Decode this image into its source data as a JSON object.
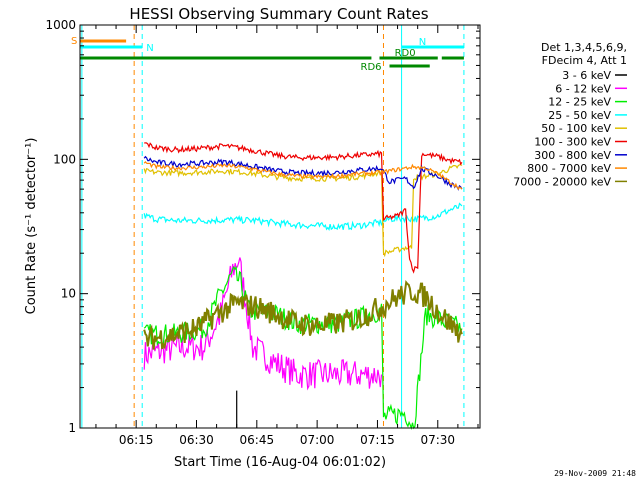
{
  "chart_data": {
    "type": "line",
    "title": "HESSI Observing Summary Count Rates",
    "xlabel": "Start Time (16-Aug-04 06:01:02)",
    "ylabel": "Count Rate (s⁻¹ detector⁻¹)",
    "yscale": "log",
    "ylim": [
      1,
      1000
    ],
    "xlim": [
      "06:01:02",
      "07:40:30"
    ],
    "x_ticks": [
      "06:15",
      "06:30",
      "06:45",
      "07:00",
      "07:15",
      "07:30"
    ],
    "y_ticks": [
      "1",
      "10",
      "100",
      "1000"
    ],
    "legend_header": [
      "Det 1,3,4,5,6,9,",
      "FDecim 4, Att 1"
    ],
    "legend_position": "right",
    "footer_date": "29-Nov-2009 21:48",
    "series": [
      {
        "name": "3 - 6 keV",
        "color": "#000000",
        "points": [
          [
            "06:40:00",
            1.9
          ],
          [
            "06:40:00",
            1.0
          ]
        ]
      },
      {
        "name": "6 - 12 keV",
        "color": "#ff00ff",
        "points": [
          [
            "06:17:00",
            3.5
          ],
          [
            "06:22:00",
            3.8
          ],
          [
            "06:27:00",
            4.0
          ],
          [
            "06:32:00",
            4.0
          ],
          [
            "06:36:00",
            7.0
          ],
          [
            "06:39:00",
            15.0
          ],
          [
            "06:40:30",
            18.0
          ],
          [
            "06:42:00",
            10.0
          ],
          [
            "06:44:00",
            4.0
          ],
          [
            "06:50:00",
            3.0
          ],
          [
            "06:55:00",
            2.5
          ],
          [
            "07:00:00",
            2.5
          ],
          [
            "07:10:00",
            2.5
          ],
          [
            "07:16:00",
            2.5
          ]
        ]
      },
      {
        "name": "12 - 25 keV",
        "color": "#00ee00",
        "points": [
          [
            "06:17:00",
            5.0
          ],
          [
            "06:25:00",
            5.0
          ],
          [
            "06:32:00",
            5.5
          ],
          [
            "06:36:00",
            10.0
          ],
          [
            "06:39:00",
            14.0
          ],
          [
            "06:41:00",
            12.0
          ],
          [
            "06:43:00",
            7.5
          ],
          [
            "06:50:00",
            7.0
          ],
          [
            "06:55:00",
            6.0
          ],
          [
            "07:00:00",
            6.0
          ],
          [
            "07:05:00",
            6.0
          ],
          [
            "07:10:00",
            6.5
          ],
          [
            "07:16:00",
            7.5
          ],
          [
            "07:16:30",
            1.2
          ],
          [
            "07:22:00",
            1.3
          ],
          [
            "07:24:00",
            1.0
          ],
          [
            "07:27:00",
            7.0
          ],
          [
            "07:30:00",
            6.5
          ],
          [
            "07:36:00",
            5.5
          ]
        ]
      },
      {
        "name": "25 - 50 keV",
        "color": "#00ffff",
        "points": [
          [
            "06:17:00",
            38.0
          ],
          [
            "06:20:00",
            36.0
          ],
          [
            "06:25:00",
            35.0
          ],
          [
            "06:30:00",
            35.0
          ],
          [
            "06:40:00",
            35.5
          ],
          [
            "06:45:00",
            35.0
          ],
          [
            "06:50:00",
            33.5
          ],
          [
            "06:55:00",
            32.5
          ],
          [
            "07:00:00",
            32.0
          ],
          [
            "07:05:00",
            31.5
          ],
          [
            "07:10:00",
            32.0
          ],
          [
            "07:16:00",
            34.0
          ],
          [
            "07:18:00",
            36.0
          ],
          [
            "07:22:00",
            36.5
          ],
          [
            "07:25:00",
            36.0
          ],
          [
            "07:30:00",
            38.0
          ],
          [
            "07:33:00",
            42.0
          ],
          [
            "07:36:00",
            45.0
          ]
        ]
      },
      {
        "name": "50 - 100 keV",
        "color": "#e0c000",
        "points": [
          [
            "06:17:00",
            82.0
          ],
          [
            "06:20:00",
            80.0
          ],
          [
            "06:25:00",
            79.0
          ],
          [
            "06:30:00",
            80.0
          ],
          [
            "06:37:00",
            82.0
          ],
          [
            "06:42:00",
            80.0
          ],
          [
            "06:50:00",
            74.0
          ],
          [
            "06:55:00",
            72.0
          ],
          [
            "07:00:00",
            72.0
          ],
          [
            "07:05:00",
            72.0
          ],
          [
            "07:10:00",
            74.0
          ],
          [
            "07:16:00",
            80.0
          ],
          [
            "07:16:30",
            20.0
          ],
          [
            "07:22:00",
            22.0
          ],
          [
            "07:23:30",
            22.0
          ],
          [
            "07:24:00",
            73.0
          ],
          [
            "07:27:00",
            75.0
          ],
          [
            "07:30:00",
            78.0
          ],
          [
            "07:33:00",
            85.0
          ],
          [
            "07:36:00",
            90.0
          ]
        ]
      },
      {
        "name": "100 - 300 keV",
        "color": "#ee0000",
        "points": [
          [
            "06:17:00",
            132.0
          ],
          [
            "06:20:00",
            122.0
          ],
          [
            "06:25:00",
            118.0
          ],
          [
            "06:30:00",
            120.0
          ],
          [
            "06:37:00",
            126.0
          ],
          [
            "06:42:00",
            120.0
          ],
          [
            "06:50:00",
            107.0
          ],
          [
            "06:55:00",
            103.0
          ],
          [
            "07:00:00",
            103.0
          ],
          [
            "07:05:00",
            104.0
          ],
          [
            "07:10:00",
            107.0
          ],
          [
            "07:16:00",
            110.0
          ],
          [
            "07:16:30",
            36.0
          ],
          [
            "07:20:00",
            38.0
          ],
          [
            "07:22:00",
            42.0
          ],
          [
            "07:23:00",
            18.0
          ],
          [
            "07:24:00",
            15.0
          ],
          [
            "07:25:00",
            16.0
          ],
          [
            "07:26:00",
            110.0
          ],
          [
            "07:30:00",
            105.0
          ],
          [
            "07:33:00",
            98.0
          ],
          [
            "07:36:00",
            95.0
          ]
        ]
      },
      {
        "name": "300 - 800 keV",
        "color": "#0000cc",
        "points": [
          [
            "06:17:00",
            102.0
          ],
          [
            "06:20:00",
            95.0
          ],
          [
            "06:25:00",
            92.0
          ],
          [
            "06:30:00",
            93.0
          ],
          [
            "06:37:00",
            96.0
          ],
          [
            "06:42:00",
            91.0
          ],
          [
            "06:50:00",
            82.0
          ],
          [
            "06:55:00",
            79.0
          ],
          [
            "07:00:00",
            79.0
          ],
          [
            "07:05:00",
            80.0
          ],
          [
            "07:10:00",
            83.0
          ],
          [
            "07:16:00",
            86.0
          ],
          [
            "07:18:00",
            68.0
          ],
          [
            "07:22:00",
            72.0
          ],
          [
            "07:24:00",
            62.0
          ],
          [
            "07:26:00",
            85.0
          ],
          [
            "07:30:00",
            75.0
          ],
          [
            "07:33:00",
            66.0
          ],
          [
            "07:36:00",
            60.0
          ]
        ]
      },
      {
        "name": "800 - 7000 keV",
        "color": "#ff8800",
        "points": [
          [
            "06:17:00",
            95.0
          ],
          [
            "06:20:00",
            88.0
          ],
          [
            "06:25:00",
            86.0
          ],
          [
            "06:30:00",
            87.0
          ],
          [
            "06:37:00",
            90.0
          ],
          [
            "06:42:00",
            87.0
          ],
          [
            "06:50:00",
            78.0
          ],
          [
            "06:55:00",
            75.0
          ],
          [
            "07:00:00",
            74.0
          ],
          [
            "07:05:00",
            75.0
          ],
          [
            "07:10:00",
            78.0
          ],
          [
            "07:16:00",
            80.0
          ],
          [
            "07:20:00",
            84.0
          ],
          [
            "07:24:00",
            88.0
          ],
          [
            "07:27:00",
            86.0
          ],
          [
            "07:30:00",
            78.0
          ],
          [
            "07:33:00",
            68.0
          ],
          [
            "07:36:00",
            60.0
          ]
        ]
      },
      {
        "name": "7000 - 20000 keV",
        "color": "#808000",
        "points": [
          [
            "06:17:00",
            4.5
          ],
          [
            "06:25:00",
            5.0
          ],
          [
            "06:30:00",
            5.5
          ],
          [
            "06:35:00",
            7.0
          ],
          [
            "06:40:00",
            8.5
          ],
          [
            "06:45:00",
            8.0
          ],
          [
            "06:50:00",
            7.0
          ],
          [
            "06:55:00",
            6.0
          ],
          [
            "07:00:00",
            5.8
          ],
          [
            "07:05:00",
            6.0
          ],
          [
            "07:10:00",
            6.5
          ],
          [
            "07:16:00",
            8.0
          ],
          [
            "07:20:00",
            9.5
          ],
          [
            "07:24:00",
            10.5
          ],
          [
            "07:27:00",
            9.5
          ],
          [
            "07:30:00",
            7.5
          ],
          [
            "07:33:00",
            6.0
          ],
          [
            "07:36:00",
            5.0
          ]
        ]
      }
    ],
    "state_bars": [
      {
        "label": "S",
        "color": "#ff8800",
        "start": "06:01:02",
        "end": "06:12:30",
        "level": "top"
      },
      {
        "label": "N",
        "color": "#00ffff",
        "start": "06:01:02",
        "end": "06:16:30",
        "level": "upper",
        "label_side": "end"
      },
      {
        "label": "N",
        "color": "#00ffff",
        "start": "07:21:00",
        "end": "07:36:30",
        "level": "upper",
        "label_side": "none"
      },
      {
        "label": "",
        "color": "#008800",
        "start": "06:01:02",
        "end": "07:13:30",
        "level": "middle"
      },
      {
        "label": "RD0",
        "color": "#008800",
        "start": "07:15:30",
        "end": "07:30:00",
        "level": "middle"
      },
      {
        "label": "",
        "color": "#008800",
        "start": "07:31:00",
        "end": "07:36:30",
        "level": "middle"
      },
      {
        "label": "RD6",
        "color": "#008800",
        "start": "07:18:00",
        "end": "07:28:00",
        "level": "lower",
        "label_side": "start"
      }
    ],
    "vlines": [
      {
        "time": "06:01:30",
        "color": "#00ffff",
        "style": "solid"
      },
      {
        "time": "06:14:30",
        "color": "#ff8800",
        "style": "dashed"
      },
      {
        "time": "06:16:30",
        "color": "#00ffff",
        "style": "dashed"
      },
      {
        "time": "07:16:30",
        "color": "#ff8800",
        "style": "dashed"
      },
      {
        "time": "07:21:00",
        "color": "#00ffff",
        "style": "solid"
      },
      {
        "time": "07:36:30",
        "color": "#00ffff",
        "style": "dashed"
      }
    ]
  }
}
